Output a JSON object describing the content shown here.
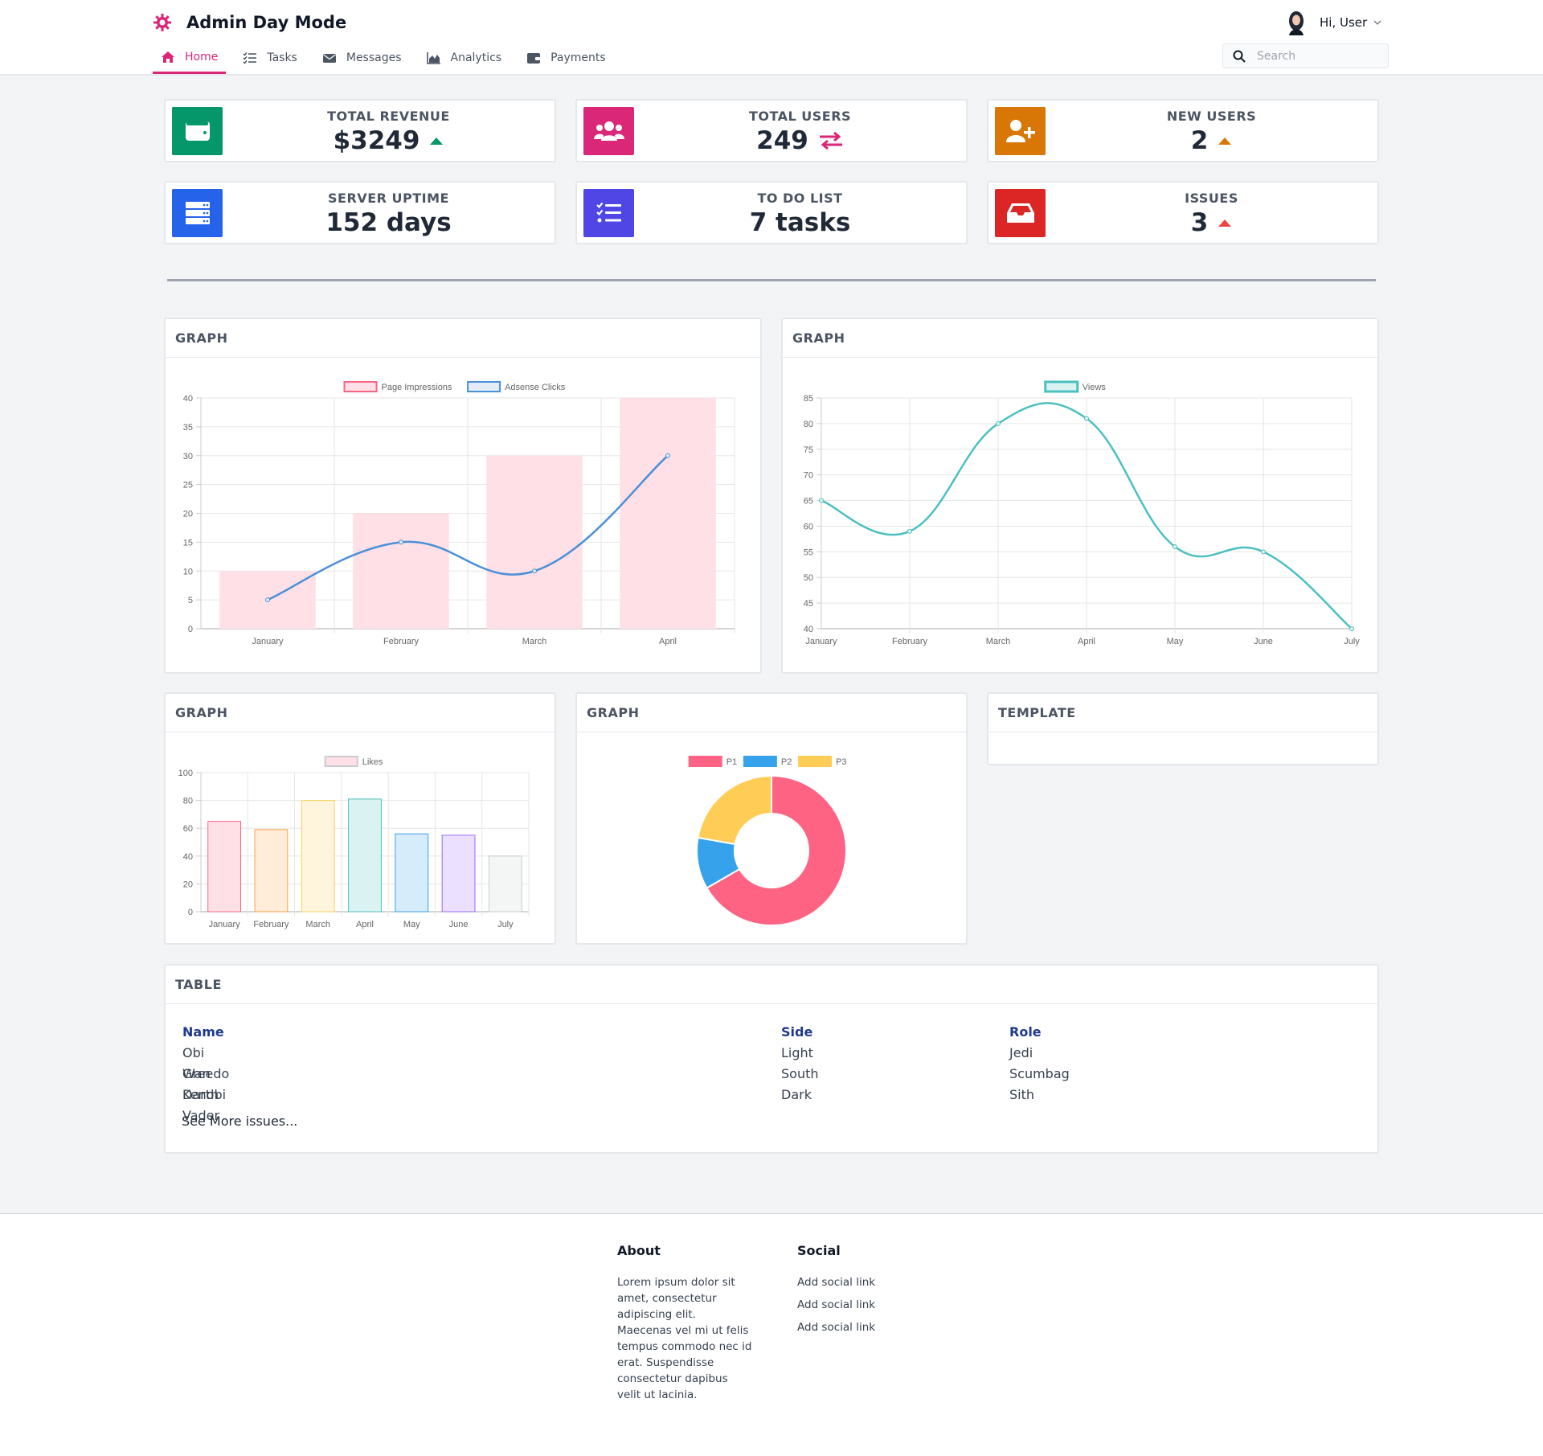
{
  "header": {
    "title": "Admin Day Mode",
    "greeting": "Hi, User",
    "search_placeholder": "Search",
    "brand_color": "#db2777",
    "nav": [
      {
        "label": "Home",
        "icon": "home-icon",
        "active": true
      },
      {
        "label": "Tasks",
        "icon": "tasks-icon",
        "active": false
      },
      {
        "label": "Messages",
        "icon": "envelope-icon",
        "active": false
      },
      {
        "label": "Analytics",
        "icon": "chart-area-icon",
        "active": false
      },
      {
        "label": "Payments",
        "icon": "wallet-icon",
        "active": false
      }
    ]
  },
  "stats": [
    {
      "label": "TOTAL REVENUE",
      "value": "$3249",
      "icon": "wallet-icon",
      "color": "#059669",
      "trend": "up"
    },
    {
      "label": "TOTAL USERS",
      "value": "249",
      "icon": "users-icon",
      "color": "#db2777",
      "trend": "exchange"
    },
    {
      "label": "NEW USERS",
      "value": "2",
      "icon": "user-plus-icon",
      "color": "#d97706",
      "trend": "up"
    },
    {
      "label": "SERVER UPTIME",
      "value": "152 days",
      "icon": "server-icon",
      "color": "#2563eb",
      "trend": "none"
    },
    {
      "label": "TO DO LIST",
      "value": "7 tasks",
      "icon": "list-check-icon",
      "color": "#4f46e5",
      "trend": "none"
    },
    {
      "label": "ISSUES",
      "value": "3",
      "icon": "inbox-icon",
      "color": "#dc2626",
      "trend": "up"
    }
  ],
  "panels": {
    "graph1_title": "GRAPH",
    "graph2_title": "GRAPH",
    "graph3_title": "GRAPH",
    "graph4_title": "GRAPH",
    "template_title": "TEMPLATE",
    "table_title": "TABLE"
  },
  "chart_data": [
    {
      "type": "bar",
      "categories": [
        "January",
        "February",
        "March",
        "April"
      ],
      "series": [
        {
          "name": "Page Impressions",
          "kind": "bar",
          "values": [
            10,
            20,
            30,
            40
          ],
          "color": "#ff6384",
          "fill": "#ffe0e6"
        },
        {
          "name": "Adsense Clicks",
          "kind": "line",
          "values": [
            5,
            15,
            10,
            30
          ],
          "color": "#4a90d9",
          "fill": "#e3ecf7"
        }
      ],
      "ylim": [
        0,
        40
      ],
      "yticks": [
        0,
        5,
        10,
        15,
        20,
        25,
        30,
        35,
        40
      ],
      "legend": "top",
      "grid": true
    },
    {
      "type": "line",
      "categories": [
        "January",
        "February",
        "March",
        "April",
        "May",
        "June",
        "July"
      ],
      "series": [
        {
          "name": "Views",
          "values": [
            65,
            59,
            80,
            81,
            56,
            55,
            40
          ],
          "color": "#4bc0c0",
          "fill": "#dbf2f2"
        }
      ],
      "ylim": [
        40,
        85
      ],
      "yticks": [
        40,
        45,
        50,
        55,
        60,
        65,
        70,
        75,
        80,
        85
      ],
      "legend": "top",
      "grid": true
    },
    {
      "type": "bar",
      "categories": [
        "January",
        "February",
        "March",
        "April",
        "May",
        "June",
        "July"
      ],
      "series": [
        {
          "name": "Likes",
          "values": [
            65,
            59,
            80,
            81,
            56,
            55,
            40
          ]
        }
      ],
      "bar_colors": [
        {
          "fill": "#ffe0e6",
          "stroke": "#ff6384"
        },
        {
          "fill": "#ffecd9",
          "stroke": "#ff9f40"
        },
        {
          "fill": "#fff5dd",
          "stroke": "#ffcd56"
        },
        {
          "fill": "#dbf2f2",
          "stroke": "#4bc0c0"
        },
        {
          "fill": "#d7ecfb",
          "stroke": "#36a2eb"
        },
        {
          "fill": "#ebe0ff",
          "stroke": "#9966ff"
        },
        {
          "fill": "#f4f5f5",
          "stroke": "#c9cbcf"
        }
      ],
      "ylim": [
        0,
        100
      ],
      "yticks": [
        0,
        20,
        40,
        60,
        80,
        100
      ],
      "legend": "top",
      "legend_color": {
        "fill": "#ffe0e6",
        "stroke": "#c9cbcf"
      },
      "grid": true
    },
    {
      "type": "pie",
      "variant": "doughnut",
      "labels": [
        "P1",
        "P2",
        "P3"
      ],
      "values": [
        300,
        50,
        100
      ],
      "colors": [
        "#ff6384",
        "#36a2eb",
        "#ffcd56"
      ],
      "legend": "top"
    }
  ],
  "table": {
    "columns": [
      "Name",
      "Side",
      "Role"
    ],
    "rows": [
      [
        "Obi Wan Kenobi",
        "Light",
        "Jedi"
      ],
      [
        "Greedo",
        "South",
        "Scumbag"
      ],
      [
        "Darth Vader",
        "Dark",
        "Sith"
      ]
    ],
    "see_more": "See More issues..."
  },
  "footer": {
    "about_title": "About",
    "about_text": "Lorem ipsum dolor sit amet, consectetur adipiscing elit. Maecenas vel mi ut felis tempus commodo nec id erat. Suspendisse consectetur dapibus velit ut lacinia.",
    "social_title": "Social",
    "social_links": [
      "Add social link",
      "Add social link",
      "Add social link"
    ]
  }
}
